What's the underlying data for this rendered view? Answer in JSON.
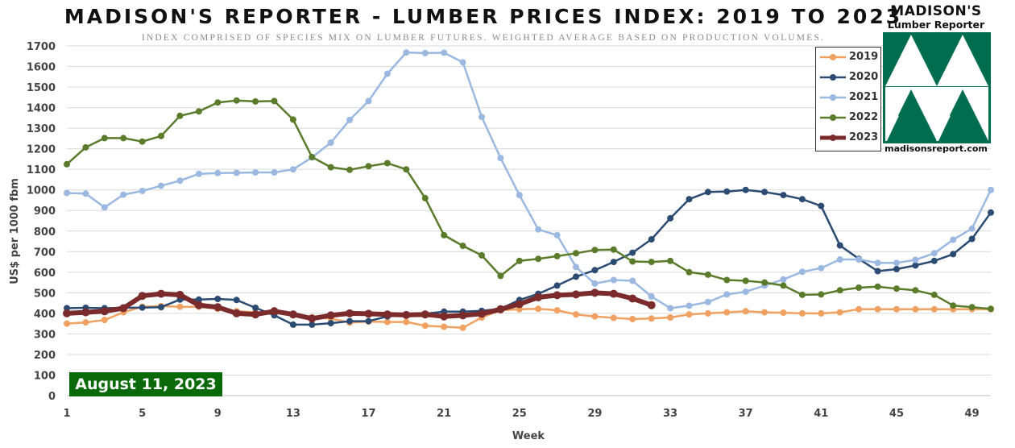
{
  "chart_data": {
    "type": "line",
    "title": "MADISON'S REPORTER - LUMBER PRICES INDEX: 2019 TO 2023",
    "subtitle": "INDEX COMPRISED OF SPECIES MIX ON LUMBER FUTURES. WEIGHTED AVERAGE BASED ON PRODUCTION VOLUMES.",
    "xlabel": "Week",
    "ylabel": "US$ per 1000 fbm",
    "xlim": [
      1,
      50
    ],
    "ylim": [
      0,
      1700
    ],
    "xticks": [
      1,
      5,
      9,
      13,
      17,
      21,
      25,
      29,
      33,
      37,
      41,
      45,
      49
    ],
    "yticks": [
      0,
      100,
      200,
      300,
      400,
      500,
      600,
      700,
      800,
      900,
      1000,
      1100,
      1200,
      1300,
      1400,
      1500,
      1600,
      1700
    ],
    "grid": "horizontal",
    "legend_position": "top-right",
    "annotation": "August 11, 2023",
    "series": [
      {
        "name": "2019",
        "color": "#f0a060",
        "width": 2.5,
        "values": [
          350,
          356,
          368,
          405,
          432,
          435,
          432,
          432,
          422,
          410,
          405,
          404,
          395,
          380,
          375,
          355,
          360,
          358,
          358,
          340,
          335,
          330,
          380,
          415,
          420,
          422,
          415,
          395,
          385,
          378,
          372,
          375,
          380,
          395,
          400,
          405,
          410,
          405,
          403,
          400,
          400,
          405,
          420,
          420,
          420,
          420,
          420,
          420,
          420,
          420
        ]
      },
      {
        "name": "2020",
        "color": "#2b4b72",
        "width": 2.5,
        "values": [
          425,
          427,
          425,
          427,
          428,
          430,
          467,
          467,
          470,
          465,
          427,
          390,
          345,
          345,
          352,
          362,
          362,
          385,
          392,
          398,
          408,
          408,
          412,
          422,
          465,
          495,
          535,
          578,
          610,
          650,
          695,
          760,
          862,
          955,
          990,
          992,
          1000,
          990,
          975,
          955,
          922,
          730,
          665,
          605,
          615,
          633,
          655,
          688,
          762,
          890
        ]
      },
      {
        "name": "2021",
        "color": "#9ab8e0",
        "width": 2.5,
        "values": [
          985,
          982,
          915,
          977,
          995,
          1020,
          1045,
          1078,
          1082,
          1083,
          1085,
          1085,
          1100,
          1158,
          1230,
          1340,
          1432,
          1565,
          1668,
          1665,
          1667,
          1620,
          1355,
          1155,
          975,
          808,
          780,
          625,
          545,
          562,
          558,
          482,
          425,
          437,
          455,
          492,
          505,
          535,
          565,
          602,
          620,
          662,
          662,
          645,
          645,
          660,
          692,
          758,
          812,
          1000
        ]
      },
      {
        "name": "2022",
        "color": "#5a7b2a",
        "width": 2.5,
        "values": [
          1125,
          1207,
          1252,
          1252,
          1235,
          1262,
          1360,
          1382,
          1425,
          1435,
          1430,
          1432,
          1342,
          1160,
          1110,
          1098,
          1115,
          1130,
          1100,
          960,
          780,
          728,
          682,
          582,
          655,
          665,
          678,
          692,
          708,
          710,
          652,
          650,
          655,
          600,
          588,
          562,
          558,
          550,
          535,
          490,
          492,
          512,
          525,
          530,
          520,
          512,
          490,
          438,
          430,
          422
        ]
      },
      {
        "name": "2023",
        "color": "#7b2b2b",
        "width": 6,
        "values": [
          400,
          405,
          410,
          425,
          485,
          495,
          490,
          440,
          430,
          400,
          395,
          410,
          395,
          375,
          390,
          400,
          398,
          395,
          392,
          395,
          385,
          390,
          398,
          420,
          445,
          478,
          488,
          492,
          500,
          495,
          472,
          440
        ]
      }
    ]
  },
  "logo": {
    "line1": "MADISON'S",
    "line2": "Lumber Reporter",
    "website": "madisonsreport.com"
  }
}
